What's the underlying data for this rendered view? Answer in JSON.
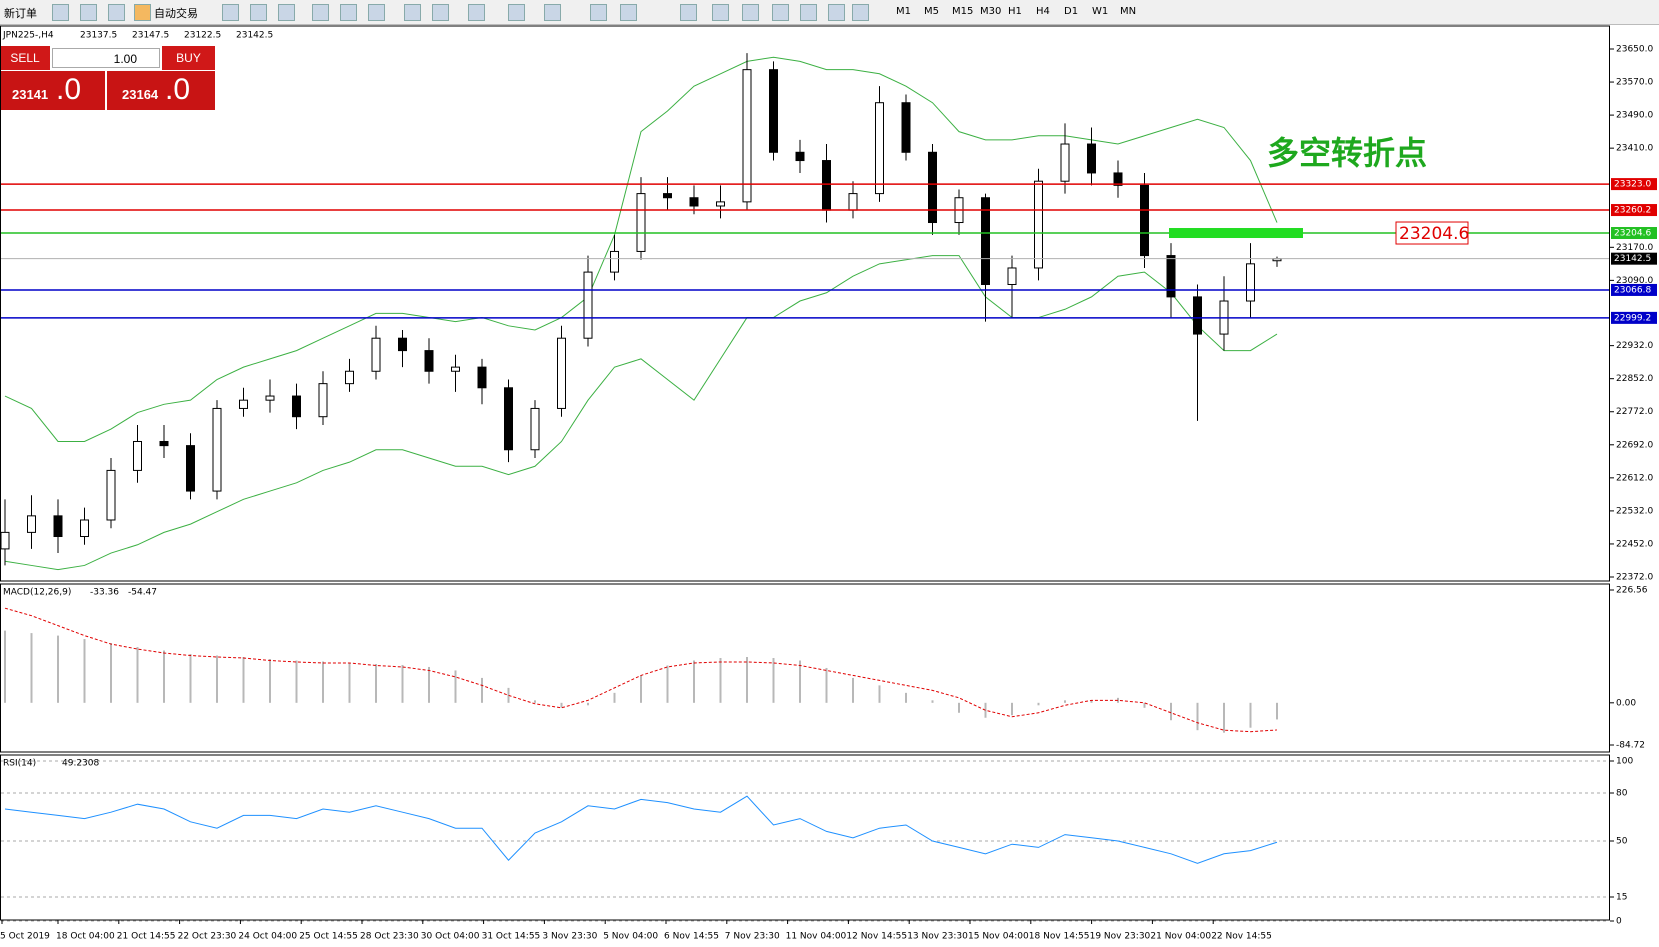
{
  "toolbar": {
    "new_order": "新订单",
    "auto_trading": "自动交易",
    "timeframes": [
      "M1",
      "M5",
      "M15",
      "M30",
      "H1",
      "H4",
      "D1",
      "W1",
      "MN"
    ]
  },
  "trade_panel": {
    "sell": "SELL",
    "buy": "BUY",
    "volume": "1.00",
    "bid": "23141",
    "bid_frac": ".0",
    "ask": "23164",
    "ask_frac": ".0"
  },
  "price_chart": {
    "symbol": "JPN225-,H4",
    "annotation": "多空转折点",
    "ylim": [
      22372,
      23650
    ],
    "yticks": [
      {
        "value": 23650,
        "label": "23650.0"
      },
      {
        "value": 23570,
        "label": "23570.0"
      },
      {
        "value": 23490,
        "label": "23490.0"
      },
      {
        "value": 23410,
        "label": "23410.0"
      },
      {
        "value": 23170,
        "label": "23170.0"
      },
      {
        "value": 23090,
        "label": "23090.0"
      },
      {
        "value": 22932,
        "label": "22932.0"
      },
      {
        "value": 22852,
        "label": "22852.0"
      },
      {
        "value": 22772,
        "label": "22772.0"
      },
      {
        "value": 22692,
        "label": "22692.0"
      },
      {
        "value": 22612,
        "label": "22612.0"
      },
      {
        "value": 22532,
        "label": "22532.0"
      },
      {
        "value": 22452,
        "label": "22452.0"
      },
      {
        "value": 22372,
        "label": "22372.0"
      }
    ],
    "levels": [
      {
        "value": 23323,
        "label": "23323.0",
        "color": "#e00000"
      },
      {
        "value": 23260.2,
        "label": "23260.2",
        "color": "#e00000"
      },
      {
        "value": 23204.6,
        "label": "23204.6",
        "color": "#22c022"
      },
      {
        "value": 23066.8,
        "label": "23066.8",
        "color": "#0000c8"
      },
      {
        "value": 22999.2,
        "label": "22999.2",
        "color": "#0000c8"
      }
    ],
    "open": [
      22440,
      22480,
      22520,
      22470,
      22510,
      22630,
      22700,
      22690,
      22580,
      22780,
      22800,
      22810,
      22760,
      22840,
      22870,
      22950,
      22920,
      22870,
      22880,
      22830,
      22680,
      22780,
      22950,
      23110,
      23160,
      23300,
      23290,
      23270,
      23280,
      23600,
      23400,
      23380,
      23260,
      23300,
      23520,
      23400,
      23230,
      23290,
      23080,
      23120,
      23330,
      23420,
      23350,
      23320,
      23150,
      23050,
      22960,
      23040,
      23137.5
    ],
    "high": [
      22560,
      22570,
      22560,
      22540,
      22660,
      22740,
      22740,
      22720,
      22800,
      22830,
      22850,
      22840,
      22870,
      22900,
      22980,
      22970,
      22950,
      22910,
      22900,
      22850,
      22800,
      22980,
      23150,
      23200,
      23340,
      23340,
      23320,
      23320,
      23640,
      23620,
      23430,
      23420,
      23330,
      23560,
      23540,
      23420,
      23310,
      23300,
      23150,
      23360,
      23470,
      23460,
      23380,
      23350,
      23180,
      23080,
      23100,
      23180,
      23147.5
    ],
    "low": [
      22400,
      22440,
      22430,
      22450,
      22490,
      22600,
      22660,
      22560,
      22560,
      22760,
      22770,
      22730,
      22740,
      22820,
      22850,
      22880,
      22840,
      22820,
      22790,
      22650,
      22660,
      22760,
      22930,
      23090,
      23140,
      23260,
      23250,
      23240,
      23260,
      23380,
      23350,
      23230,
      23240,
      23280,
      23380,
      23200,
      23200,
      22990,
      23000,
      23090,
      23300,
      23320,
      23290,
      23120,
      23000,
      22750,
      22920,
      23000,
      23122.5
    ],
    "close": [
      22480,
      22520,
      22470,
      22510,
      22630,
      22700,
      22690,
      22580,
      22780,
      22800,
      22810,
      22760,
      22840,
      22870,
      22950,
      22920,
      22870,
      22880,
      22830,
      22680,
      22780,
      22950,
      23110,
      23160,
      23300,
      23290,
      23270,
      23280,
      23600,
      23400,
      23380,
      23260,
      23300,
      23520,
      23400,
      23230,
      23290,
      23080,
      23120,
      23330,
      23420,
      23350,
      23320,
      23150,
      23050,
      22960,
      23040,
      23130,
      23142.5
    ],
    "band_color": "#3cb043",
    "upper_band": [
      22810,
      22780,
      22700,
      22700,
      22730,
      22770,
      22790,
      22800,
      22850,
      22880,
      22900,
      22920,
      22950,
      22980,
      23010,
      23010,
      23000,
      22990,
      23000,
      22980,
      22970,
      23000,
      23050,
      23200,
      23450,
      23500,
      23560,
      23590,
      23620,
      23630,
      23620,
      23600,
      23600,
      23590,
      23560,
      23520,
      23450,
      23430,
      23430,
      23440,
      23440,
      23430,
      23420,
      23440,
      23460,
      23480,
      23460,
      23380,
      23230
    ],
    "lower_band": [
      22410,
      22400,
      22390,
      22400,
      22430,
      22450,
      22480,
      22500,
      22530,
      22560,
      22580,
      22600,
      22630,
      22650,
      22680,
      22680,
      22660,
      22640,
      22640,
      22620,
      22640,
      22700,
      22800,
      22880,
      22900,
      22850,
      22800,
      22900,
      23000,
      23000,
      23040,
      23060,
      23100,
      23130,
      23140,
      23150,
      23150,
      23050,
      23000,
      23000,
      23020,
      23050,
      23100,
      23110,
      23060,
      22980,
      22920,
      22920,
      22960
    ]
  },
  "macd": {
    "label": "MACD(12,26,9)",
    "ylim": [
      -84.72,
      226.56
    ],
    "yticks": [
      226.56,
      {
        "value": 0,
        "label": "0.00"
      },
      -84.72
    ],
    "histogram": [
      145,
      140,
      135,
      128,
      120,
      112,
      105,
      98,
      95,
      92,
      88,
      85,
      83,
      80,
      78,
      76,
      72,
      65,
      50,
      30,
      5,
      -10,
      -5,
      20,
      55,
      75,
      85,
      90,
      92,
      90,
      85,
      70,
      50,
      35,
      20,
      5,
      -20,
      -30,
      -25,
      -5,
      5,
      5,
      10,
      -10,
      -35,
      -55,
      -60,
      -50,
      -33.36
    ],
    "signal": [
      190,
      175,
      155,
      135,
      118,
      108,
      100,
      95,
      92,
      90,
      85,
      82,
      80,
      80,
      75,
      72,
      65,
      52,
      35,
      15,
      -2,
      -10,
      5,
      30,
      55,
      72,
      80,
      82,
      82,
      80,
      75,
      65,
      55,
      45,
      35,
      25,
      10,
      -15,
      -28,
      -20,
      -5,
      5,
      5,
      0,
      -20,
      -40,
      -55,
      -58,
      -54.47
    ]
  },
  "rsi": {
    "label": "RSI(14)",
    "ylim": [
      0,
      100
    ],
    "yticks": [
      100,
      80,
      50,
      15,
      0
    ],
    "color": "#1e90ff",
    "values": [
      70,
      68,
      66,
      64,
      68,
      73,
      70,
      62,
      58,
      66,
      66,
      64,
      70,
      68,
      72,
      68,
      64,
      58,
      58,
      38,
      55,
      62,
      72,
      70,
      76,
      74,
      70,
      68,
      78,
      60,
      64,
      56,
      52,
      58,
      60,
      50,
      46,
      42,
      48,
      46,
      54,
      52,
      50,
      46,
      42,
      36,
      42,
      44,
      49.2308
    ]
  },
  "time_axis": [
    "5 Oct 2019",
    "18 Oct 04:00",
    "21 Oct 14:55",
    "22 Oct 23:30",
    "24 Oct 04:00",
    "25 Oct 14:55",
    "28 Oct 23:30",
    "30 Oct 04:00",
    "31 Oct 14:55",
    "3 Nov 23:30",
    "5 Nov 04:00",
    "6 Nov 14:55",
    "7 Nov 23:30",
    "11 Nov 04:00",
    "12 Nov 14:55",
    "13 Nov 23:30",
    "15 Nov 04:00",
    "18 Nov 14:55",
    "19 Nov 23:30",
    "21 Nov 04:00",
    "22 Nov 14:55"
  ]
}
